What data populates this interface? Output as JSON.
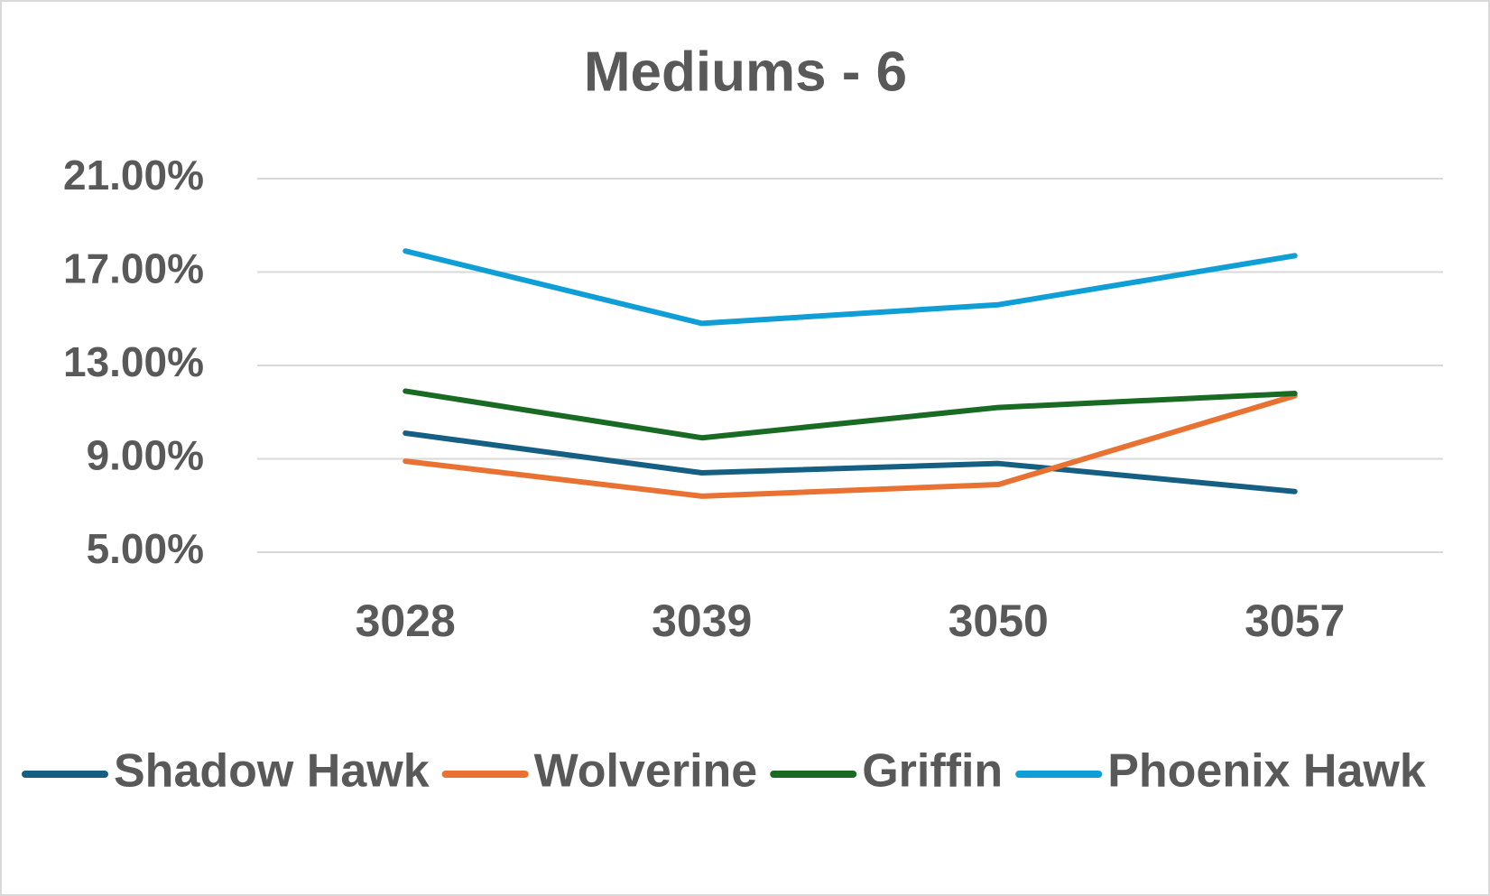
{
  "chart_data": {
    "type": "line",
    "title": "Mediums - 6",
    "categories": [
      "3028",
      "3039",
      "3050",
      "3057"
    ],
    "series": [
      {
        "name": "Shadow Hawk",
        "color": "#156082",
        "values": [
          10.1,
          8.4,
          8.8,
          7.6
        ]
      },
      {
        "name": "Wolverine",
        "color": "#e97132",
        "values": [
          8.9,
          7.4,
          7.9,
          11.7
        ]
      },
      {
        "name": "Griffin",
        "color": "#196b24",
        "values": [
          11.9,
          9.9,
          11.2,
          11.8
        ]
      },
      {
        "name": "Phoenix Hawk",
        "color": "#0f9ed5",
        "values": [
          17.9,
          14.8,
          15.6,
          17.7
        ]
      }
    ],
    "ylim": [
      5,
      21
    ],
    "yticks": [
      {
        "value": 5,
        "label": "5.00%"
      },
      {
        "value": 9,
        "label": "9.00%"
      },
      {
        "value": 13,
        "label": "13.00%"
      },
      {
        "value": 17,
        "label": "17.00%"
      },
      {
        "value": 21,
        "label": "21.00%"
      }
    ],
    "grid": true,
    "legend": "bottom"
  }
}
